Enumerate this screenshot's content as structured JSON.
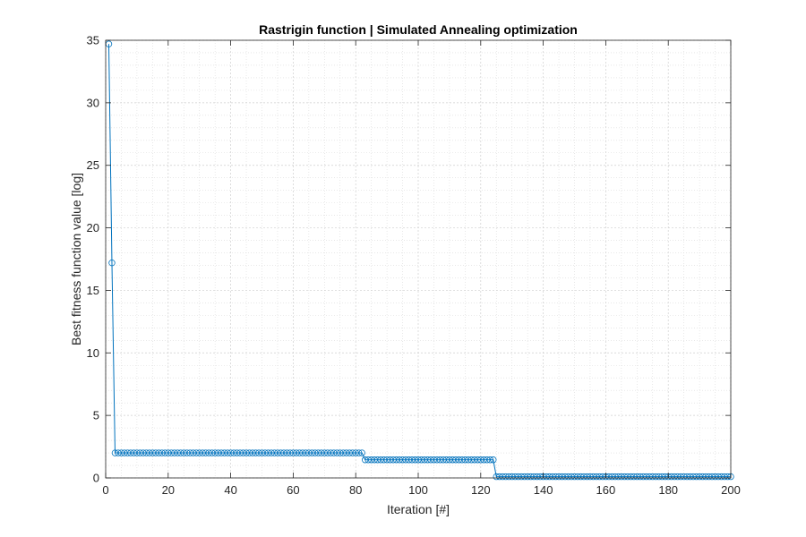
{
  "chart_data": {
    "type": "line",
    "title": "Rastrigin function | Simulated Annealing optimization",
    "xlabel": "Iteration [#]",
    "ylabel": "Best fitness function value [log]",
    "xlim": [
      0,
      200
    ],
    "ylim": [
      0,
      35
    ],
    "xticks": [
      0,
      20,
      40,
      60,
      80,
      100,
      120,
      140,
      160,
      180,
      200
    ],
    "yticks": [
      0,
      5,
      10,
      15,
      20,
      25,
      30,
      35
    ],
    "grid": true,
    "minor_grid": true,
    "marker": "circle",
    "colors": {
      "series": "#0072BD",
      "grid": "#d9d9d9",
      "axis": "#262626"
    },
    "series": [
      {
        "segments": [
          {
            "x_start": 1,
            "x_end": 1,
            "y": 34.7
          },
          {
            "x_start": 2,
            "x_end": 2,
            "y": 17.2
          },
          {
            "x_start": 3,
            "x_end": 82,
            "y": 2.0
          },
          {
            "x_start": 83,
            "x_end": 124,
            "y": 1.45
          },
          {
            "x_start": 125,
            "x_end": 200,
            "y": 0.1
          }
        ]
      }
    ]
  }
}
